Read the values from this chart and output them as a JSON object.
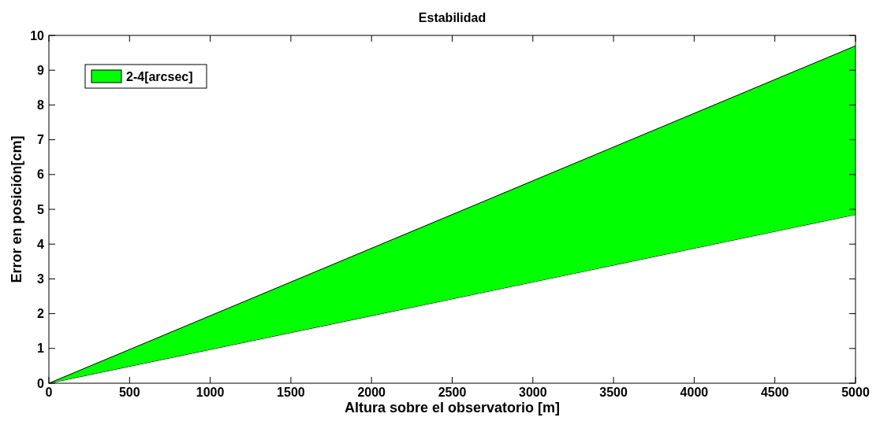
{
  "chart_data": {
    "type": "area",
    "title": "Estabilidad",
    "xlabel": "Altura sobre el observatorio [m]",
    "ylabel": "Error en posición[cm]",
    "x": [
      0,
      5000
    ],
    "stacked": true,
    "series": [
      {
        "color": "#ffffff",
        "values": [
          0,
          4.85
        ]
      },
      {
        "name": "2-4[arcsec]",
        "color": "#00ff00",
        "values": [
          0,
          4.85
        ]
      }
    ],
    "xlim": [
      0,
      5000
    ],
    "ylim": [
      0,
      10
    ],
    "xticks": [
      0,
      500,
      1000,
      1500,
      2000,
      2500,
      3000,
      3500,
      4000,
      4500,
      5000
    ],
    "yticks": [
      0,
      1,
      2,
      3,
      4,
      5,
      6,
      7,
      8,
      9,
      10
    ],
    "grid": false,
    "legend": "top left"
  }
}
